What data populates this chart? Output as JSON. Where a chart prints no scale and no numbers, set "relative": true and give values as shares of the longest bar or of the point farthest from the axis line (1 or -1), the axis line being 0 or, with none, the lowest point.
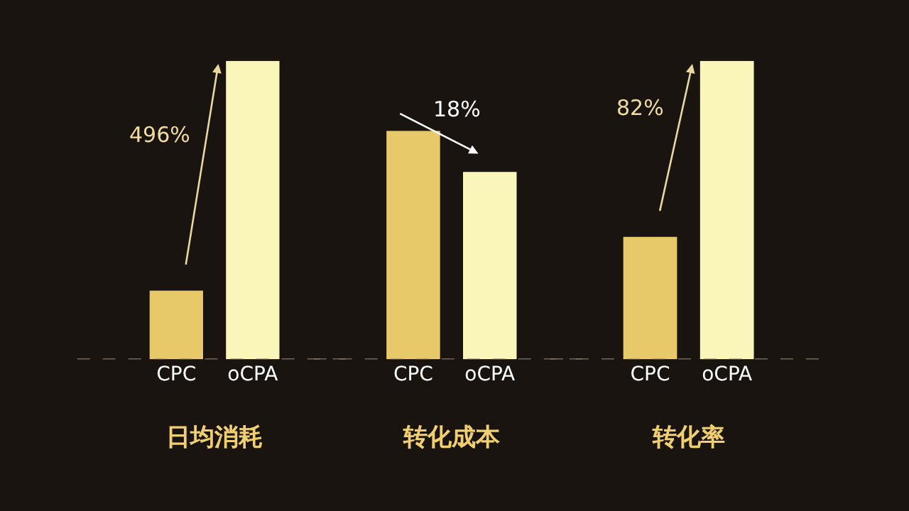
{
  "chart_data": [
    {
      "type": "bar",
      "relative": true,
      "categories": [
        "CPC",
        "oCPA"
      ],
      "values": [
        0.23,
        1
      ],
      "colors": [
        "#e8c96a",
        "#faf5b8"
      ],
      "xlabel": "日均消耗",
      "annotations": [
        "496%"
      ],
      "grid": false,
      "legend": false
    },
    {
      "type": "bar",
      "relative": true,
      "categories": [
        "CPC",
        "oCPA"
      ],
      "values": [
        1,
        0.82
      ],
      "colors": [
        "#e8c96a",
        "#faf5b8"
      ],
      "xlabel": "转化成本",
      "annotations": [
        "18%"
      ],
      "grid": false,
      "legend": false
    },
    {
      "type": "bar",
      "relative": true,
      "categories": [
        "CPC",
        "oCPA"
      ],
      "values": [
        0.41,
        1
      ],
      "colors": [
        "#e8c96a",
        "#faf5b8"
      ],
      "xlabel": "转化率",
      "annotations": [
        "82%"
      ],
      "grid": false,
      "legend": false
    }
  ]
}
